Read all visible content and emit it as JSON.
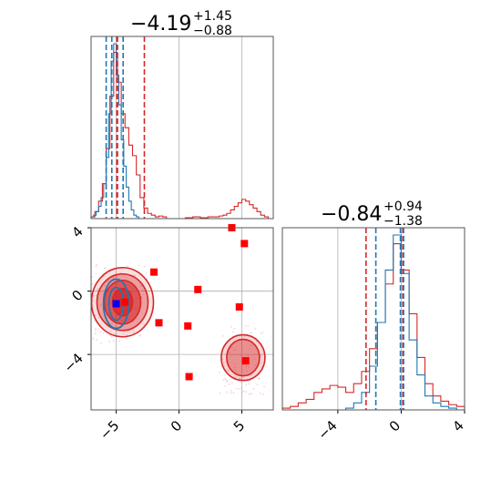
{
  "colors": {
    "red": "#d62728",
    "blue": "#1f77b4",
    "pink_scatter": "#f2b6c6",
    "marker_red": "#ff0000",
    "marker_blue": "#0000ff",
    "grid": "#b0b0b0",
    "frame": "#555555"
  },
  "chart_data": {
    "type": "corner",
    "panels": [
      {
        "id": "marg-x",
        "type": "histogram",
        "title": {
          "main": "−4.19",
          "sup": "+1.45",
          "sub": "−0.88"
        },
        "xlim": [
          -7,
          7.5
        ],
        "grid_x": [
          -5,
          0,
          5
        ],
        "series": [
          {
            "name": "",
            "color": "red",
            "bins": [
              -7,
              -6.7,
              -6.4,
              -6.1,
              -5.8,
              -5.5,
              -5.2,
              -4.9,
              -4.6,
              -4.3,
              -4.0,
              -3.7,
              -3.4,
              -3.1,
              -2.8,
              -2.5,
              -2.2,
              -1.9,
              -1.6,
              -1.3,
              -1.0,
              -0.7,
              -0.4,
              -0.1,
              0.2,
              0.5,
              0.8,
              1.1,
              1.4,
              1.7,
              2.0,
              2.3,
              2.6,
              2.9,
              3.2,
              3.5,
              3.8,
              4.1,
              4.4,
              4.7,
              5.0,
              5.3,
              5.6,
              5.9,
              6.2,
              6.5,
              6.8,
              7.1,
              7.5
            ],
            "counts": [
              0.01,
              0.04,
              0.1,
              0.2,
              0.4,
              0.7,
              0.95,
              0.78,
              0.6,
              0.52,
              0.42,
              0.36,
              0.25,
              0.12,
              0.06,
              0.03,
              0.02,
              0.01,
              0.015,
              0.01,
              0.0,
              0.0,
              0.0,
              0.0,
              0.0,
              0.005,
              0.005,
              0.01,
              0.01,
              0.005,
              0.005,
              0.01,
              0.01,
              0.01,
              0.015,
              0.02,
              0.03,
              0.05,
              0.07,
              0.09,
              0.11,
              0.1,
              0.08,
              0.06,
              0.04,
              0.02,
              0.01,
              0.0
            ]
          },
          {
            "name": "",
            "color": "blue",
            "bins": [
              -7,
              -6.8,
              -6.6,
              -6.4,
              -6.2,
              -6.0,
              -5.8,
              -5.6,
              -5.4,
              -5.2,
              -5.0,
              -4.8,
              -4.6,
              -4.4,
              -4.2,
              -4.0,
              -3.8,
              -3.6,
              -3.4,
              -3.2,
              -3.0
            ],
            "counts": [
              0.01,
              0.02,
              0.04,
              0.07,
              0.12,
              0.2,
              0.35,
              0.6,
              0.9,
              1.0,
              0.82,
              0.65,
              0.45,
              0.3,
              0.18,
              0.1,
              0.05,
              0.02,
              0.01,
              0.0
            ]
          }
        ],
        "vlines": [
          {
            "x": -5.35,
            "color": "blue"
          },
          {
            "x": -4.45,
            "color": "blue"
          },
          {
            "x": -4.95,
            "color": "red"
          },
          {
            "x": -4.9,
            "color": "red"
          },
          {
            "x": -2.76,
            "color": "red"
          },
          {
            "x": -5.8,
            "color": "blue"
          }
        ]
      },
      {
        "id": "joint",
        "type": "scatter-contour",
        "xlim": [
          -7,
          7.5
        ],
        "ylim": [
          -7.5,
          4
        ],
        "x_ticks": [
          "−5",
          "0",
          "5"
        ],
        "x_tick_values": [
          -5,
          0,
          5
        ],
        "y_ticks": [
          "4",
          "0",
          "−4"
        ],
        "y_tick_values": [
          4,
          0,
          -4
        ],
        "markers_red": [
          [
            -2.0,
            1.2
          ],
          [
            1.5,
            0.1
          ],
          [
            4.2,
            4.0
          ],
          [
            5.2,
            3.0
          ],
          [
            4.8,
            -1.0
          ],
          [
            -1.6,
            -2.0
          ],
          [
            0.7,
            -2.2
          ],
          [
            5.3,
            -4.4
          ],
          [
            0.8,
            -5.4
          ],
          [
            -4.3,
            -0.7
          ]
        ],
        "markers_blue": [
          [
            -5.0,
            -0.8
          ]
        ]
      },
      {
        "id": "marg-y",
        "type": "histogram",
        "title": {
          "main": "−0.84",
          "sup": "+0.94",
          "sub": "−1.38"
        },
        "xlim": [
          -7.5,
          4
        ],
        "x_ticks": [
          "−4",
          "0",
          "4"
        ],
        "x_tick_values": [
          -4,
          0,
          4
        ],
        "grid_x": [
          -4,
          0
        ],
        "series": [
          {
            "name": "",
            "color": "red",
            "bins": [
              -7.5,
              -7.0,
              -6.5,
              -6.0,
              -5.5,
              -5.0,
              -4.5,
              -4.0,
              -3.5,
              -3.0,
              -2.5,
              -2.0,
              -1.5,
              -1.0,
              -0.5,
              0.0,
              0.5,
              1.0,
              1.5,
              2.0,
              2.5,
              3.0,
              3.5,
              4.0
            ],
            "counts": [
              0.01,
              0.02,
              0.04,
              0.06,
              0.1,
              0.12,
              0.14,
              0.13,
              0.1,
              0.15,
              0.22,
              0.35,
              0.5,
              0.72,
              0.95,
              0.8,
              0.55,
              0.3,
              0.15,
              0.08,
              0.05,
              0.03,
              0.02
            ]
          },
          {
            "name": "",
            "color": "blue",
            "bins": [
              -3.5,
              -3.0,
              -2.5,
              -2.0,
              -1.5,
              -1.0,
              -0.5,
              0.0,
              0.5,
              1.0,
              1.5,
              2.0,
              2.5,
              3.0,
              3.5
            ],
            "counts": [
              0.01,
              0.04,
              0.1,
              0.25,
              0.5,
              0.8,
              1.0,
              0.78,
              0.4,
              0.2,
              0.08,
              0.04,
              0.02,
              0.01
            ]
          }
        ],
        "vlines": [
          {
            "x": -2.22,
            "color": "red"
          },
          {
            "x": -1.6,
            "color": "blue"
          },
          {
            "x": -0.05,
            "color": "blue"
          },
          {
            "x": 0.1,
            "color": "red"
          },
          {
            "x": 0.15,
            "color": "blue"
          }
        ]
      }
    ]
  }
}
